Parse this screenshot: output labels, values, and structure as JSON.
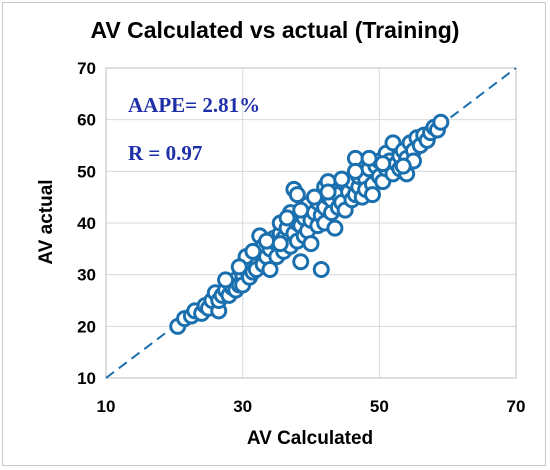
{
  "colors": {
    "marker": "#1a6fae",
    "annotation": "#1f2fa8",
    "grid": "#d9d9d9",
    "frame": "#bfbfbf"
  },
  "chart_data": {
    "type": "scatter",
    "title": "AV Calculated vs actual (Training)",
    "xlabel": "AV Calculated",
    "ylabel": "AV actual",
    "xlim": [
      10,
      70
    ],
    "ylim": [
      10,
      70
    ],
    "xticks": [
      "10",
      "30",
      "50",
      "70"
    ],
    "yticks": [
      "10",
      "20",
      "30",
      "40",
      "50",
      "60",
      "70"
    ],
    "grid": true,
    "reference_line": {
      "style": "dashed",
      "from": [
        10,
        10
      ],
      "to": [
        70,
        70
      ]
    },
    "annotations": [
      "AAPE= 2.81%",
      "R = 0.97"
    ],
    "series": [
      {
        "marker": "open-circle",
        "points": [
          [
            20.5,
            20.0
          ],
          [
            21.5,
            21.5
          ],
          [
            22.5,
            22.0
          ],
          [
            23.0,
            23.0
          ],
          [
            24.0,
            22.5
          ],
          [
            24.5,
            24.0
          ],
          [
            25.0,
            23.5
          ],
          [
            25.5,
            25.0
          ],
          [
            26.0,
            26.5
          ],
          [
            26.5,
            23.0
          ],
          [
            26.5,
            25.0
          ],
          [
            27.0,
            26.0
          ],
          [
            27.5,
            27.0
          ],
          [
            28.0,
            28.5
          ],
          [
            28.0,
            26.0
          ],
          [
            28.5,
            27.5
          ],
          [
            29.0,
            29.0
          ],
          [
            29.0,
            27.0
          ],
          [
            29.5,
            28.0
          ],
          [
            30.0,
            30.0
          ],
          [
            30.0,
            28.0
          ],
          [
            30.5,
            31.0
          ],
          [
            31.0,
            29.5
          ],
          [
            31.0,
            32.0
          ],
          [
            31.5,
            30.5
          ],
          [
            32.0,
            33.0
          ],
          [
            32.0,
            31.0
          ],
          [
            32.5,
            37.5
          ],
          [
            32.5,
            34.0
          ],
          [
            33.0,
            32.0
          ],
          [
            33.0,
            35.5
          ],
          [
            33.5,
            33.5
          ],
          [
            34.0,
            35.0
          ],
          [
            34.0,
            31.0
          ],
          [
            34.5,
            37.0
          ],
          [
            35.0,
            36.0
          ],
          [
            35.0,
            33.5
          ],
          [
            35.5,
            38.0
          ],
          [
            35.5,
            40.0
          ],
          [
            36.0,
            34.5
          ],
          [
            36.0,
            37.0
          ],
          [
            36.5,
            39.0
          ],
          [
            37.0,
            35.5
          ],
          [
            37.0,
            42.0
          ],
          [
            37.5,
            38.0
          ],
          [
            37.5,
            46.5
          ],
          [
            38.0,
            45.5
          ],
          [
            38.0,
            36.5
          ],
          [
            38.0,
            40.0
          ],
          [
            38.5,
            39.5
          ],
          [
            38.5,
            32.5
          ],
          [
            39.0,
            41.0
          ],
          [
            39.0,
            37.5
          ],
          [
            39.5,
            43.5
          ],
          [
            39.5,
            38.5
          ],
          [
            40.0,
            40.5
          ],
          [
            40.0,
            36.0
          ],
          [
            40.5,
            42.0
          ],
          [
            41.0,
            39.5
          ],
          [
            41.0,
            44.0
          ],
          [
            41.5,
            31.0
          ],
          [
            41.5,
            41.5
          ],
          [
            42.0,
            47.0
          ],
          [
            42.0,
            43.0
          ],
          [
            42.0,
            40.0
          ],
          [
            42.5,
            48.0
          ],
          [
            42.5,
            45.0
          ],
          [
            43.0,
            42.0
          ],
          [
            43.0,
            44.5
          ],
          [
            43.5,
            46.0
          ],
          [
            43.5,
            39.0
          ],
          [
            44.0,
            43.0
          ],
          [
            44.0,
            45.5
          ],
          [
            44.5,
            44.0
          ],
          [
            45.0,
            47.5
          ],
          [
            45.0,
            42.5
          ],
          [
            45.5,
            46.0
          ],
          [
            46.0,
            44.5
          ],
          [
            46.0,
            48.0
          ],
          [
            46.5,
            52.5
          ],
          [
            46.5,
            45.5
          ],
          [
            47.0,
            47.0
          ],
          [
            47.0,
            49.0
          ],
          [
            47.5,
            45.0
          ],
          [
            48.0,
            48.5
          ],
          [
            48.0,
            46.5
          ],
          [
            48.5,
            50.5
          ],
          [
            49.0,
            47.5
          ],
          [
            49.0,
            45.5
          ],
          [
            49.5,
            51.0
          ],
          [
            50.0,
            49.0
          ],
          [
            50.0,
            52.0
          ],
          [
            50.5,
            48.0
          ],
          [
            51.0,
            50.5
          ],
          [
            51.0,
            53.5
          ],
          [
            51.5,
            52.0
          ],
          [
            52.0,
            55.5
          ],
          [
            52.0,
            49.5
          ],
          [
            52.5,
            51.5
          ],
          [
            53.0,
            53.0
          ],
          [
            53.0,
            50.5
          ],
          [
            53.5,
            54.0
          ],
          [
            54.0,
            52.5
          ],
          [
            54.0,
            49.5
          ],
          [
            54.5,
            55.5
          ],
          [
            55.0,
            54.0
          ],
          [
            55.0,
            52.0
          ],
          [
            55.5,
            56.5
          ],
          [
            56.0,
            55.0
          ],
          [
            56.5,
            57.0
          ],
          [
            57.0,
            56.0
          ],
          [
            57.5,
            57.5
          ],
          [
            58.0,
            58.5
          ],
          [
            58.5,
            58.0
          ],
          [
            59.0,
            59.5
          ],
          [
            36.5,
            41.0
          ],
          [
            40.5,
            45.0
          ],
          [
            44.5,
            48.5
          ],
          [
            33.5,
            36.5
          ],
          [
            30.5,
            33.5
          ],
          [
            27.5,
            29.0
          ],
          [
            46.5,
            50.0
          ],
          [
            50.5,
            51.5
          ],
          [
            53.5,
            51.0
          ],
          [
            48.5,
            52.5
          ],
          [
            42.5,
            46.0
          ],
          [
            38.5,
            42.5
          ],
          [
            35.5,
            36.0
          ],
          [
            31.5,
            34.5
          ],
          [
            29.5,
            31.5
          ]
        ]
      }
    ]
  }
}
